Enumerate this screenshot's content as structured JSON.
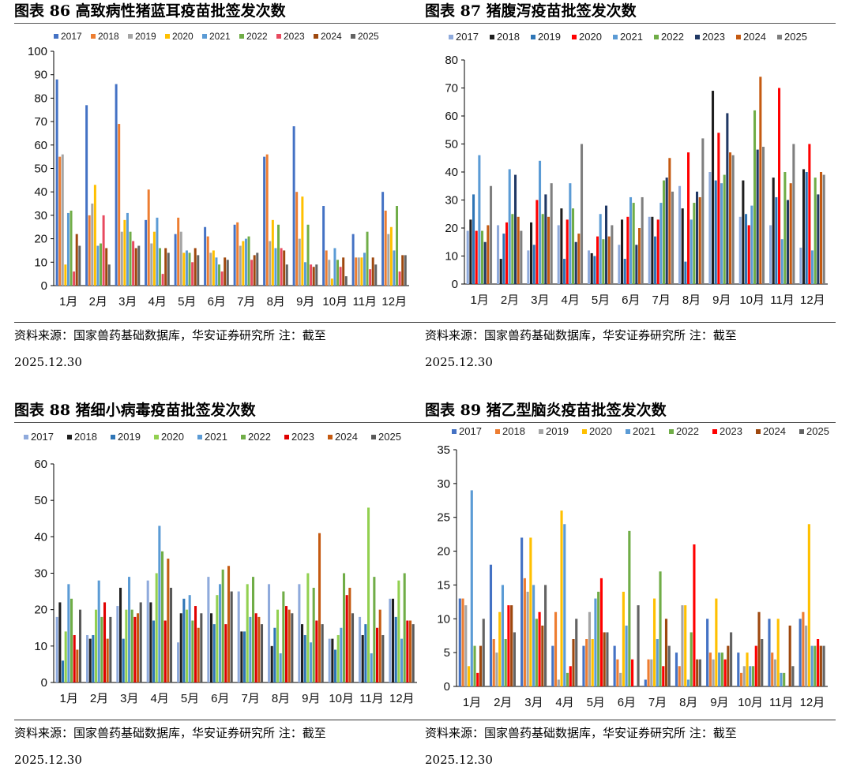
{
  "panels": [
    {
      "title": "图表 86 高致病性猪蓝耳疫苗批签发次数",
      "source": "资料来源：国家兽药基础数据库，华安证券研究所 注：截至",
      "date": "2025.12.30"
    },
    {
      "title": "图表 87 猪腹泻疫苗批签发次数",
      "source": "资料来源：国家兽药基础数据库，华安证券研究所 注：截至",
      "date": "2025.12.30"
    },
    {
      "title": "图表 88 猪细小病毒疫苗批签发次数",
      "source": "资料来源：国家兽药基础数据库，华安证券研究所 注：截至",
      "date": "2025.12.30"
    },
    {
      "title": "图表 89 猪乙型脑炎疫苗批签发次数",
      "source": "资料来源：国家兽药基础数据库，华安证券研究所 注：截至",
      "date": "2025.12.30"
    }
  ],
  "chart_data": [
    {
      "type": "bar",
      "title": "图表 86 高致病性猪蓝耳疫苗批签发次数",
      "categories": [
        "1月",
        "2月",
        "3月",
        "4月",
        "5月",
        "6月",
        "7月",
        "8月",
        "9月",
        "10月",
        "11月",
        "12月"
      ],
      "ylim": [
        0,
        100
      ],
      "yticks": [
        0,
        10,
        20,
        30,
        40,
        50,
        60,
        70,
        80,
        90,
        100
      ],
      "legend": "top",
      "series": [
        {
          "name": "2017",
          "color": "#4472C4",
          "values": [
            88,
            77,
            86,
            28,
            22,
            25,
            26,
            55,
            68,
            34,
            22,
            40
          ]
        },
        {
          "name": "2018",
          "color": "#ED7D31",
          "values": [
            55,
            30,
            69,
            41,
            29,
            21,
            27,
            56,
            40,
            15,
            12,
            32
          ]
        },
        {
          "name": "2019",
          "color": "#A5A5A5",
          "values": [
            56,
            35,
            23,
            18,
            23,
            14,
            17,
            19,
            20,
            11,
            12,
            22
          ]
        },
        {
          "name": "2020",
          "color": "#FFC000",
          "values": [
            9,
            43,
            28,
            23,
            14,
            15,
            19,
            28,
            38,
            3,
            12,
            25
          ]
        },
        {
          "name": "2021",
          "color": "#5B9BD5",
          "values": [
            31,
            17,
            31,
            29,
            15,
            12,
            20,
            16,
            10,
            16,
            14,
            15
          ]
        },
        {
          "name": "2022",
          "color": "#70AD47",
          "values": [
            32,
            18,
            23,
            16,
            14,
            9,
            21,
            26,
            26,
            11,
            23,
            34
          ]
        },
        {
          "name": "2023",
          "color": "#E84A5F",
          "values": [
            6,
            30,
            19,
            5,
            10,
            6,
            11,
            16,
            9,
            8,
            7,
            6
          ]
        },
        {
          "name": "2024",
          "color": "#9E480E",
          "values": [
            22,
            16,
            16,
            16,
            16,
            12,
            13,
            15,
            8,
            12,
            12,
            13
          ]
        },
        {
          "name": "2025",
          "color": "#636363",
          "values": [
            17,
            9,
            17,
            14,
            13,
            11,
            14,
            9,
            9,
            4,
            9,
            13
          ]
        }
      ]
    },
    {
      "type": "bar",
      "title": "图表 87 猪腹泻疫苗批签发次数",
      "categories": [
        "1月",
        "2月",
        "3月",
        "4月",
        "5月",
        "6月",
        "7月",
        "8月",
        "9月",
        "10月",
        "11月",
        "12月"
      ],
      "ylim": [
        0,
        80
      ],
      "yticks": [
        0,
        10,
        20,
        30,
        40,
        50,
        60,
        70,
        80
      ],
      "legend": "top",
      "series": [
        {
          "name": "2017",
          "color": "#8FAADC",
          "values": [
            19,
            21,
            12,
            21,
            12,
            14,
            24,
            35,
            40,
            24,
            21,
            13
          ]
        },
        {
          "name": "2018",
          "color": "#1F1F1F",
          "values": [
            23,
            9,
            22,
            27,
            11,
            23,
            24,
            27,
            69,
            37,
            38,
            41
          ]
        },
        {
          "name": "2019",
          "color": "#2E75B6",
          "values": [
            32,
            18,
            14,
            9,
            10,
            9,
            17,
            8,
            37,
            25,
            31,
            40
          ]
        },
        {
          "name": "2020",
          "color": "#FF0000",
          "values": [
            19,
            22,
            30,
            23,
            17,
            24,
            23,
            47,
            54,
            21,
            70,
            50
          ]
        },
        {
          "name": "2021",
          "color": "#5B9BD5",
          "values": [
            46,
            41,
            44,
            36,
            25,
            31,
            29,
            23,
            36,
            28,
            16,
            12
          ]
        },
        {
          "name": "2022",
          "color": "#70AD47",
          "values": [
            19,
            25,
            25,
            27,
            16,
            29,
            37,
            29,
            39,
            62,
            40,
            38
          ]
        },
        {
          "name": "2023",
          "color": "#203864",
          "values": [
            15,
            39,
            32,
            15,
            28,
            14,
            38,
            33,
            61,
            48,
            30,
            32
          ]
        },
        {
          "name": "2024",
          "color": "#C55A11",
          "values": [
            21,
            24,
            24,
            18,
            17,
            20,
            45,
            31,
            47,
            74,
            36,
            40
          ]
        },
        {
          "name": "2025",
          "color": "#7F7F7F",
          "values": [
            35,
            19,
            36,
            50,
            21,
            31,
            33,
            52,
            46,
            49,
            50,
            39
          ]
        }
      ]
    },
    {
      "type": "bar",
      "title": "图表 88 猪细小病毒疫苗批签发次数",
      "categories": [
        "1月",
        "2月",
        "3月",
        "4月",
        "5月",
        "6月",
        "7月",
        "8月",
        "9月",
        "10月",
        "11月",
        "12月"
      ],
      "ylim": [
        0,
        60
      ],
      "yticks": [
        0,
        10,
        20,
        30,
        40,
        50,
        60
      ],
      "legend": "top",
      "series": [
        {
          "name": "2017",
          "color": "#8FAADC",
          "values": [
            18,
            13,
            21,
            28,
            11,
            29,
            25,
            27,
            27,
            12,
            18,
            23
          ]
        },
        {
          "name": "2018",
          "color": "#1F1F1F",
          "values": [
            22,
            12,
            26,
            22,
            19,
            19,
            14,
            10,
            16,
            12,
            13,
            23
          ]
        },
        {
          "name": "2019",
          "color": "#2E75B6",
          "values": [
            6,
            13,
            12,
            17,
            23,
            16,
            14,
            15,
            13,
            9,
            16,
            18
          ]
        },
        {
          "name": "2020",
          "color": "#92D050",
          "values": [
            14,
            20,
            20,
            30,
            20,
            24,
            27,
            20,
            30,
            13,
            48,
            28
          ]
        },
        {
          "name": "2021",
          "color": "#5B9BD5",
          "values": [
            27,
            28,
            29,
            43,
            24,
            27,
            18,
            8,
            11,
            15,
            8,
            12
          ]
        },
        {
          "name": "2022",
          "color": "#70AD47",
          "values": [
            23,
            18,
            20,
            36,
            17,
            31,
            29,
            25,
            26,
            30,
            29,
            30
          ]
        },
        {
          "name": "2023",
          "color": "#E00000",
          "values": [
            13,
            22,
            18,
            17,
            21,
            16,
            19,
            21,
            17,
            24,
            15,
            17
          ]
        },
        {
          "name": "2024",
          "color": "#C55A11",
          "values": [
            9,
            12,
            19,
            34,
            15,
            32,
            18,
            20,
            41,
            26,
            20,
            17
          ]
        },
        {
          "name": "2025",
          "color": "#595959",
          "values": [
            20,
            18,
            22,
            26,
            19,
            25,
            16,
            19,
            16,
            19,
            13,
            16
          ]
        }
      ]
    },
    {
      "type": "bar",
      "title": "图表 89 猪乙型脑炎疫苗批签发次数",
      "categories": [
        "1月",
        "2月",
        "3月",
        "4月",
        "5月",
        "6月",
        "7月",
        "8月",
        "9月",
        "10月",
        "11月",
        "12月"
      ],
      "ylim": [
        0,
        35
      ],
      "yticks": [
        0,
        5,
        10,
        15,
        20,
        25,
        30,
        35
      ],
      "legend": "top",
      "series": [
        {
          "name": "2017",
          "color": "#4472C4",
          "values": [
            13,
            18,
            22,
            6,
            6,
            6,
            1,
            5,
            10,
            5,
            10,
            10
          ]
        },
        {
          "name": "2018",
          "color": "#ED7D31",
          "values": [
            13,
            7,
            16,
            11,
            7,
            4,
            4,
            3,
            5,
            2,
            5,
            11
          ]
        },
        {
          "name": "2019",
          "color": "#A5A5A5",
          "values": [
            12,
            5,
            14,
            1,
            11,
            2,
            4,
            12,
            4,
            3,
            4,
            9
          ]
        },
        {
          "name": "2020",
          "color": "#FFC000",
          "values": [
            3,
            11,
            22,
            26,
            7,
            14,
            13,
            12,
            13,
            5,
            10,
            24
          ]
        },
        {
          "name": "2021",
          "color": "#5B9BD5",
          "values": [
            29,
            15,
            15,
            24,
            13,
            9,
            7,
            1,
            5,
            3,
            2,
            6
          ]
        },
        {
          "name": "2022",
          "color": "#70AD47",
          "values": [
            6,
            7,
            10,
            2,
            14,
            23,
            17,
            8,
            5,
            3,
            2,
            6
          ]
        },
        {
          "name": "2023",
          "color": "#FF0000",
          "values": [
            2,
            12,
            11,
            3,
            16,
            4,
            3,
            21,
            4,
            6,
            0,
            7
          ]
        },
        {
          "name": "2024",
          "color": "#9E480E",
          "values": [
            6,
            12,
            9,
            7,
            8,
            0,
            10,
            4,
            6,
            11,
            9,
            6
          ]
        },
        {
          "name": "2025",
          "color": "#636363",
          "values": [
            10,
            8,
            15,
            10,
            8,
            12,
            6,
            4,
            8,
            7,
            3,
            6
          ]
        }
      ]
    }
  ]
}
